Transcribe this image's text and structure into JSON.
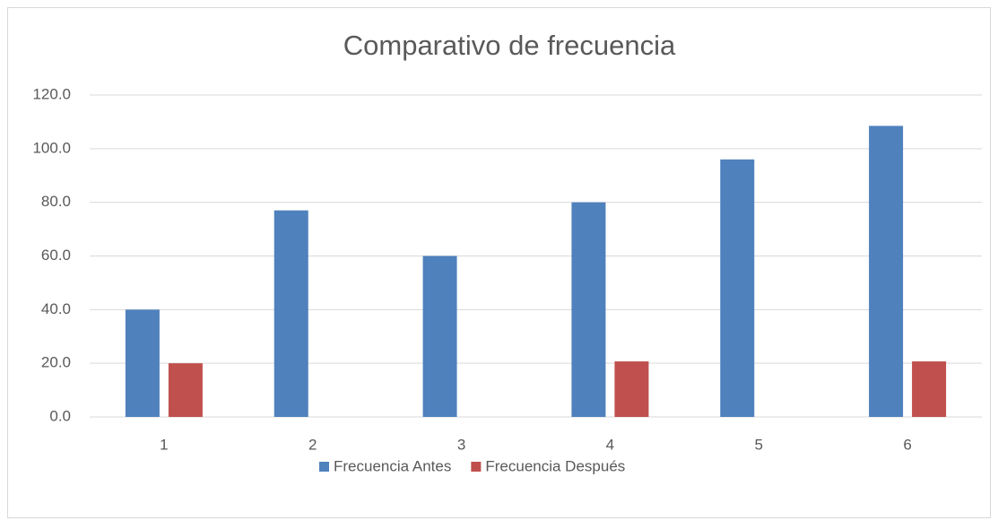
{
  "chart_data": {
    "type": "bar",
    "title": "Comparativo de frecuencia",
    "categories": [
      "1",
      "2",
      "3",
      "4",
      "5",
      "6"
    ],
    "series": [
      {
        "name": "Frecuencia Antes",
        "color": "#4f81bd",
        "values": [
          40,
          77,
          60,
          80,
          96,
          108.5
        ]
      },
      {
        "name": "Frecuencia Después",
        "color": "#c0504d",
        "values": [
          20,
          null,
          null,
          20.7,
          null,
          20.7
        ]
      }
    ],
    "ylim": [
      0,
      120
    ],
    "yticks": [
      {
        "value": 0,
        "label": "0.0"
      },
      {
        "value": 20,
        "label": "20.0"
      },
      {
        "value": 40,
        "label": "40.0"
      },
      {
        "value": 60,
        "label": "60.0"
      },
      {
        "value": 80,
        "label": "80.0"
      },
      {
        "value": 100,
        "label": "100.0"
      },
      {
        "value": 120,
        "label": "120.0"
      }
    ],
    "grid": true,
    "legend": "bottom"
  }
}
